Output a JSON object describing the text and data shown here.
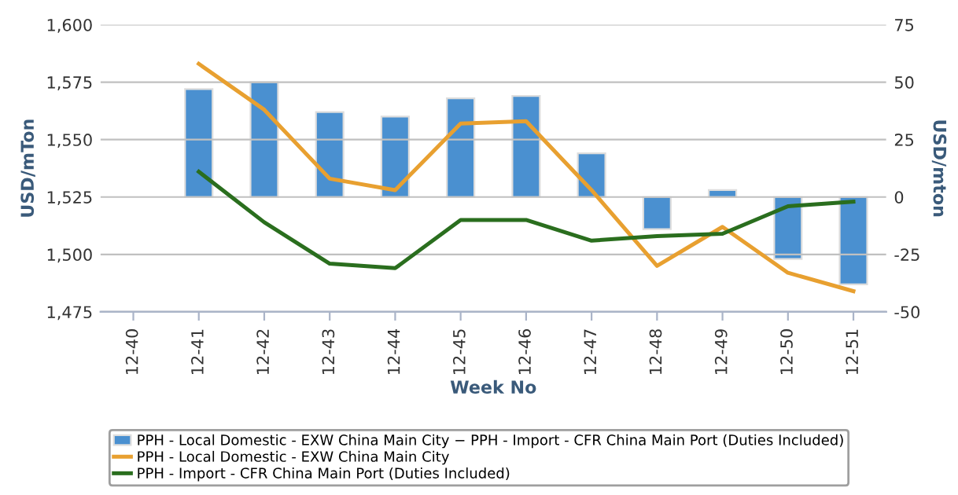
{
  "chart_data": {
    "type": "line",
    "xlabel": "Week No",
    "ylabel": "USD/mTon",
    "y2label": "USD/mton",
    "categories": [
      "12-40",
      "12-41",
      "12-42",
      "12-43",
      "12-44",
      "12-45",
      "12-46",
      "12-47",
      "12-48",
      "12-49",
      "12-50",
      "12-51"
    ],
    "series": [
      {
        "name": "PPH - Local Domestic - EXW China Main City − PPH - Import - CFR China Main Port (Duties Included)",
        "type": "bar",
        "axis": "y2",
        "color": "#4a90d0",
        "values": [
          null,
          47,
          50,
          37,
          35,
          43,
          44,
          19,
          -14,
          3,
          -27,
          -38
        ]
      },
      {
        "name": "PPH - Local Domestic - EXW China Main City",
        "color": "#e8a030",
        "values": [
          null,
          1583,
          1563,
          1533,
          1528,
          1557,
          1558,
          1528,
          1495,
          1512,
          1492,
          1484
        ]
      },
      {
        "name": "PPH - Import - CFR China Main Port (Duties Included)",
        "color": "#2a6e1e",
        "values": [
          null,
          1536,
          1514,
          1496,
          1494,
          1515,
          1515,
          1506,
          1508,
          1509,
          1521,
          1523
        ]
      }
    ],
    "ylim": [
      1475,
      1600
    ],
    "yticks": [
      {
        "value": 1475,
        "label": "1,475"
      },
      {
        "value": 1500,
        "label": "1,500"
      },
      {
        "value": 1525,
        "label": "1,525"
      },
      {
        "value": 1550,
        "label": "1,550"
      },
      {
        "value": 1575,
        "label": "1,575"
      },
      {
        "value": 1600,
        "label": "1,600"
      }
    ],
    "y2lim": [
      -50,
      75
    ],
    "y2ticks": [
      -50,
      -25,
      0,
      25,
      50,
      75
    ],
    "grid": "y",
    "legend": "bottom",
    "marker": "none",
    "line_style": "solid"
  }
}
